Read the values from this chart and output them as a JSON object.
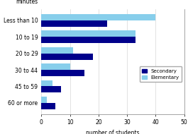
{
  "categories": [
    "Less than 10",
    "10 to 19",
    "20 to 29",
    "30 to 44",
    "45 to 59",
    "60 or more"
  ],
  "secondary": [
    23,
    33,
    18,
    15,
    7,
    5
  ],
  "elementary": [
    40,
    33,
    11,
    10,
    4,
    2
  ],
  "secondary_color": "#00008B",
  "elementary_color": "#87CEEB",
  "xlabel": "number of students",
  "minutes_label": "minutes",
  "xlim": [
    0,
    50
  ],
  "xticks": [
    0,
    10,
    20,
    30,
    40,
    50
  ],
  "legend_labels": [
    "Secondary",
    "Elementary"
  ],
  "label_fontsize": 5.5,
  "tick_fontsize": 5.5
}
